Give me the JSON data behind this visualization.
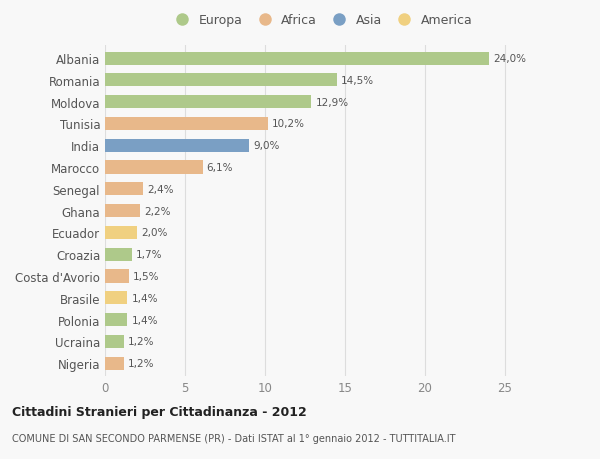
{
  "countries": [
    "Albania",
    "Romania",
    "Moldova",
    "Tunisia",
    "India",
    "Marocco",
    "Senegal",
    "Ghana",
    "Ecuador",
    "Croazia",
    "Costa d'Avorio",
    "Brasile",
    "Polonia",
    "Ucraina",
    "Nigeria"
  ],
  "values": [
    24.0,
    14.5,
    12.9,
    10.2,
    9.0,
    6.1,
    2.4,
    2.2,
    2.0,
    1.7,
    1.5,
    1.4,
    1.4,
    1.2,
    1.2
  ],
  "labels": [
    "24,0%",
    "14,5%",
    "12,9%",
    "10,2%",
    "9,0%",
    "6,1%",
    "2,4%",
    "2,2%",
    "2,0%",
    "1,7%",
    "1,5%",
    "1,4%",
    "1,4%",
    "1,2%",
    "1,2%"
  ],
  "colors": [
    "#aec98a",
    "#aec98a",
    "#aec98a",
    "#e8b88a",
    "#7a9fc4",
    "#e8b88a",
    "#e8b88a",
    "#e8b88a",
    "#f0d080",
    "#aec98a",
    "#e8b88a",
    "#f0d080",
    "#aec98a",
    "#aec98a",
    "#e8b88a"
  ],
  "legend_labels": [
    "Europa",
    "Africa",
    "Asia",
    "America"
  ],
  "legend_colors": [
    "#aec98a",
    "#e8b88a",
    "#7a9fc4",
    "#f0d080"
  ],
  "title_bold": "Cittadini Stranieri per Cittadinanza - 2012",
  "subtitle": "COMUNE DI SAN SECONDO PARMENSE (PR) - Dati ISTAT al 1° gennaio 2012 - TUTTITALIA.IT",
  "xlim": [
    0,
    27
  ],
  "xticks": [
    0,
    5,
    10,
    15,
    20,
    25
  ],
  "bg_color": "#f8f8f8",
  "grid_color": "#dddddd",
  "bar_height": 0.6
}
